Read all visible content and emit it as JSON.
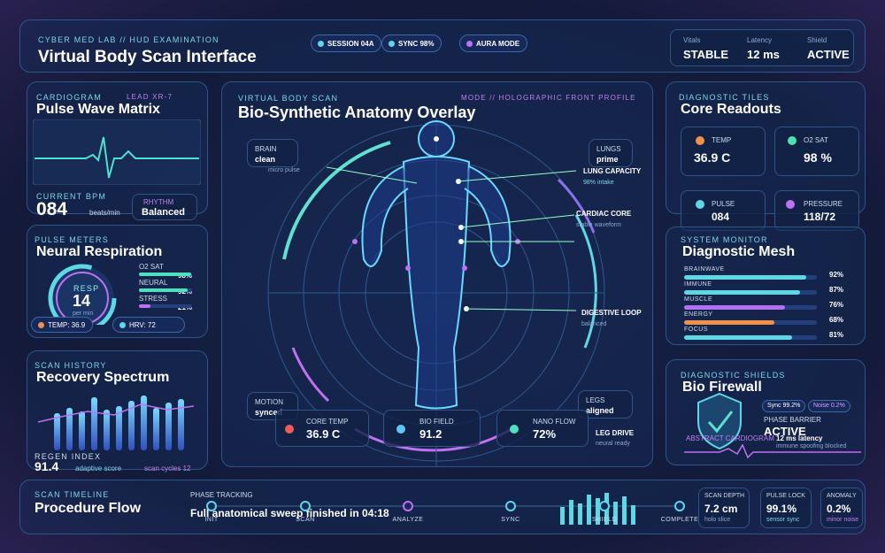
{
  "header": {
    "kicker": "CYBER MED LAB // HUD EXAMINATION",
    "title": "Virtual Body Scan Interface",
    "pills": [
      "SESSION 04A",
      "SYNC 98%",
      "AURA MODE"
    ],
    "stats": [
      {
        "label": "Vitals",
        "value": "STABLE"
      },
      {
        "label": "Latency",
        "value": "12 ms"
      },
      {
        "label": "Shield",
        "value": "ACTIVE"
      }
    ]
  },
  "cardiogram": {
    "kicker": "CARDIOGRAM",
    "lead": "LEAD XR-7",
    "title": "Pulse Wave Matrix",
    "bpm_label": "CURRENT BPM",
    "bpm": "084",
    "bpm_unit": "beats/min",
    "rhythm_label": "RHYTHM",
    "rhythm": "Balanced"
  },
  "pulse_meters": {
    "kicker": "PULSE METERS",
    "title": "Neural Respiration",
    "gauge_label": "RESP",
    "gauge_value": "14",
    "gauge_unit": "per min",
    "names": [
      "O2 SAT",
      "NEURAL",
      "STRESS"
    ],
    "values": [
      98,
      92,
      21
    ],
    "value_labels": [
      "98%",
      "92%",
      "21%"
    ],
    "chips": [
      "TEMP: 36.9",
      "HRV: 72"
    ]
  },
  "scan_history": {
    "kicker": "SCAN HISTORY",
    "title": "Recovery Spectrum",
    "index_label": "REGEN INDEX",
    "index": "91.4",
    "index_note": "adaptive score",
    "cycles": "scan cycles 12"
  },
  "body_scan": {
    "kicker": "VIRTUAL BODY SCAN",
    "mode": "MODE // HOLOGRAPHIC FRONT PROFILE",
    "title": "Bio-Synthetic Anatomy Overlay",
    "callouts": [
      {
        "label": "BRAIN",
        "value": "clean",
        "note": "micro pulse"
      },
      {
        "label": "LUNGS",
        "value": "prime"
      },
      {
        "label": "LUNG CAPACITY",
        "note": "98% intake"
      },
      {
        "label": "CARDIAC CORE",
        "note": "stable waveform"
      },
      {
        "label": "DIGESTIVE LOOP",
        "note": "balanced"
      },
      {
        "label": "MOTION",
        "value": "synced"
      },
      {
        "label": "LEGS",
        "value": "aligned"
      },
      {
        "label": "LEG DRIVE",
        "note": "neural ready"
      }
    ],
    "tiles": [
      {
        "label": "CORE TEMP",
        "value": "36.9 C"
      },
      {
        "label": "BIO FIELD",
        "value": "91.2"
      },
      {
        "label": "NANO FLOW",
        "value": "72%"
      }
    ]
  },
  "readouts": {
    "kicker": "DIAGNOSTIC TILES",
    "title": "Core Readouts",
    "tiles": [
      {
        "label": "TEMP",
        "value": "36.9 C"
      },
      {
        "label": "O2 SAT",
        "value": "98 %"
      },
      {
        "label": "PULSE",
        "value": "084"
      },
      {
        "label": "PRESSURE",
        "value": "118/72"
      }
    ]
  },
  "mesh": {
    "kicker": "SYSTEM MONITOR",
    "title": "Diagnostic Mesh",
    "names": [
      "BRAINWAVE",
      "IMMUNE",
      "MUSCLE",
      "ENERGY",
      "FOCUS"
    ],
    "values": [
      92,
      87,
      76,
      68,
      81
    ],
    "value_labels": [
      "92%",
      "87%",
      "76%",
      "68%",
      "81%"
    ],
    "colors": [
      "#5fd8e6",
      "#5fd8e6",
      "#b070f0",
      "#f0904a",
      "#5fd8e6"
    ]
  },
  "shields": {
    "kicker": "DIAGNOSTIC SHIELDS",
    "title": "Bio Firewall",
    "chips": [
      "Sync 99.2%",
      "Noise 0.2%"
    ],
    "phase_label": "PHASE BARRIER",
    "phase": "ACTIVE",
    "latency": "12 ms latency",
    "note": "immune spoofing blocked",
    "cardio": "ABSTRACT CARDIOGRAM"
  },
  "timeline": {
    "kicker": "SCAN TIMELINE",
    "title": "Procedure Flow",
    "phase_label": "PHASE TRACKING",
    "status": "Full anatomical sweep finished in 04:18",
    "steps": [
      "INIT",
      "SCAN",
      "ANALYZE",
      "SYNC",
      "SHIELD",
      "COMPLETE"
    ],
    "stats": [
      {
        "label": "SCAN DEPTH",
        "value": "7.2 cm",
        "note": "holo slice"
      },
      {
        "label": "PULSE LOCK",
        "value": "99.1%",
        "note": "sensor sync"
      },
      {
        "label": "ANOMALY",
        "value": "0.2%",
        "note": "minor noise"
      }
    ]
  }
}
